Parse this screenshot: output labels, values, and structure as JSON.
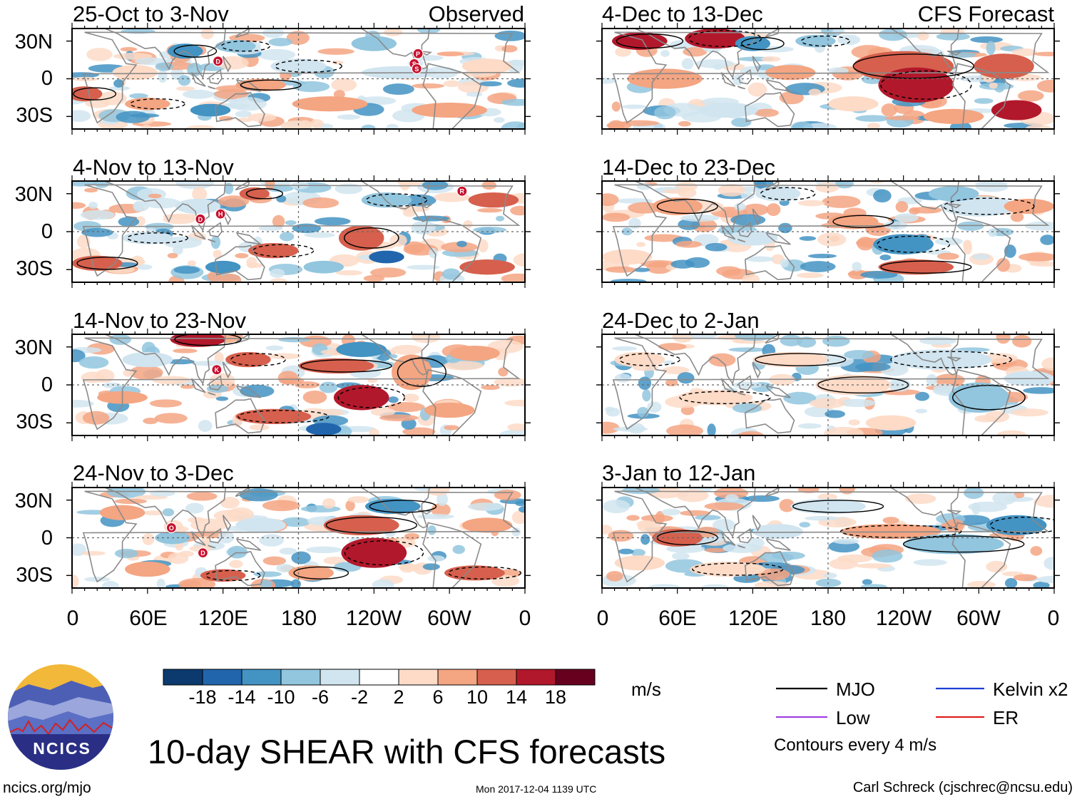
{
  "figure": {
    "title": "10-day SHEAR with CFS forecasts",
    "units": "m/s",
    "contour_note": "Contours every 4 m/s",
    "site": "ncics.org/mjo",
    "timestamp": "Mon 2017-12-04 1139 UTC",
    "credit": "Carl Schreck (cjschrec@ncsu.edu)",
    "logo_text": "NCICS"
  },
  "columns": {
    "left_label": "Observed",
    "right_label": "CFS Forecast"
  },
  "panels": [
    {
      "period": "25-Oct to 3-Nov",
      "source": "observed",
      "storms": [
        {
          "letter": "D",
          "lon": 116,
          "lat": 14
        },
        {
          "letter": "P",
          "lon": -85,
          "lat": 20
        },
        {
          "letter": "S",
          "lon": -88,
          "lat": 12
        },
        {
          "letter": "S",
          "lon": -86,
          "lat": 8
        }
      ]
    },
    {
      "period": "4-Nov to 13-Nov",
      "source": "observed",
      "storms": [
        {
          "letter": "R",
          "lon": -50,
          "lat": 32
        },
        {
          "letter": "H",
          "lon": 118,
          "lat": 14
        },
        {
          "letter": "D",
          "lon": 102,
          "lat": 10
        }
      ]
    },
    {
      "period": "14-Nov to 23-Nov",
      "source": "observed",
      "storms": [
        {
          "letter": "K",
          "lon": 115,
          "lat": 12
        }
      ]
    },
    {
      "period": "24-Nov to 3-Dec",
      "source": "observed",
      "storms": [
        {
          "letter": "O",
          "lon": 79,
          "lat": 8
        },
        {
          "letter": "D",
          "lon": 104,
          "lat": -12
        }
      ]
    },
    {
      "period": "4-Dec to 13-Dec",
      "source": "forecast",
      "storms": []
    },
    {
      "period": "14-Dec to 23-Dec",
      "source": "forecast",
      "storms": []
    },
    {
      "period": "24-Dec to 2-Jan",
      "source": "forecast",
      "storms": []
    },
    {
      "period": "3-Jan to 12-Jan",
      "source": "forecast",
      "storms": []
    }
  ],
  "axes": {
    "lat_labels": [
      "30N",
      "0",
      "30S"
    ],
    "lat_values": [
      30,
      0,
      -30
    ],
    "lon_labels": [
      "0",
      "60E",
      "120E",
      "180",
      "120W",
      "60W",
      "0"
    ],
    "lon_values": [
      0,
      60,
      120,
      180,
      240,
      300,
      360
    ],
    "lat_range": [
      -40,
      40
    ],
    "lon_range": [
      0,
      360
    ]
  },
  "colorbar": {
    "ticks": [
      "-18",
      "-14",
      "-10",
      "-6",
      "-2",
      "2",
      "6",
      "10",
      "14",
      "18"
    ],
    "colors": [
      "#0d3a6e",
      "#2166ac",
      "#4393c3",
      "#92c5de",
      "#d1e5f0",
      "#ffffff",
      "#fddbc7",
      "#f4a582",
      "#d6604d",
      "#b2182b",
      "#67001f"
    ]
  },
  "legend": [
    {
      "label": "MJO",
      "color": "#000000"
    },
    {
      "label": "Kelvin x2",
      "color": "#1c3fd6"
    },
    {
      "label": "Low",
      "color": "#a040e0"
    },
    {
      "label": "ER",
      "color": "#e02020"
    }
  ]
}
